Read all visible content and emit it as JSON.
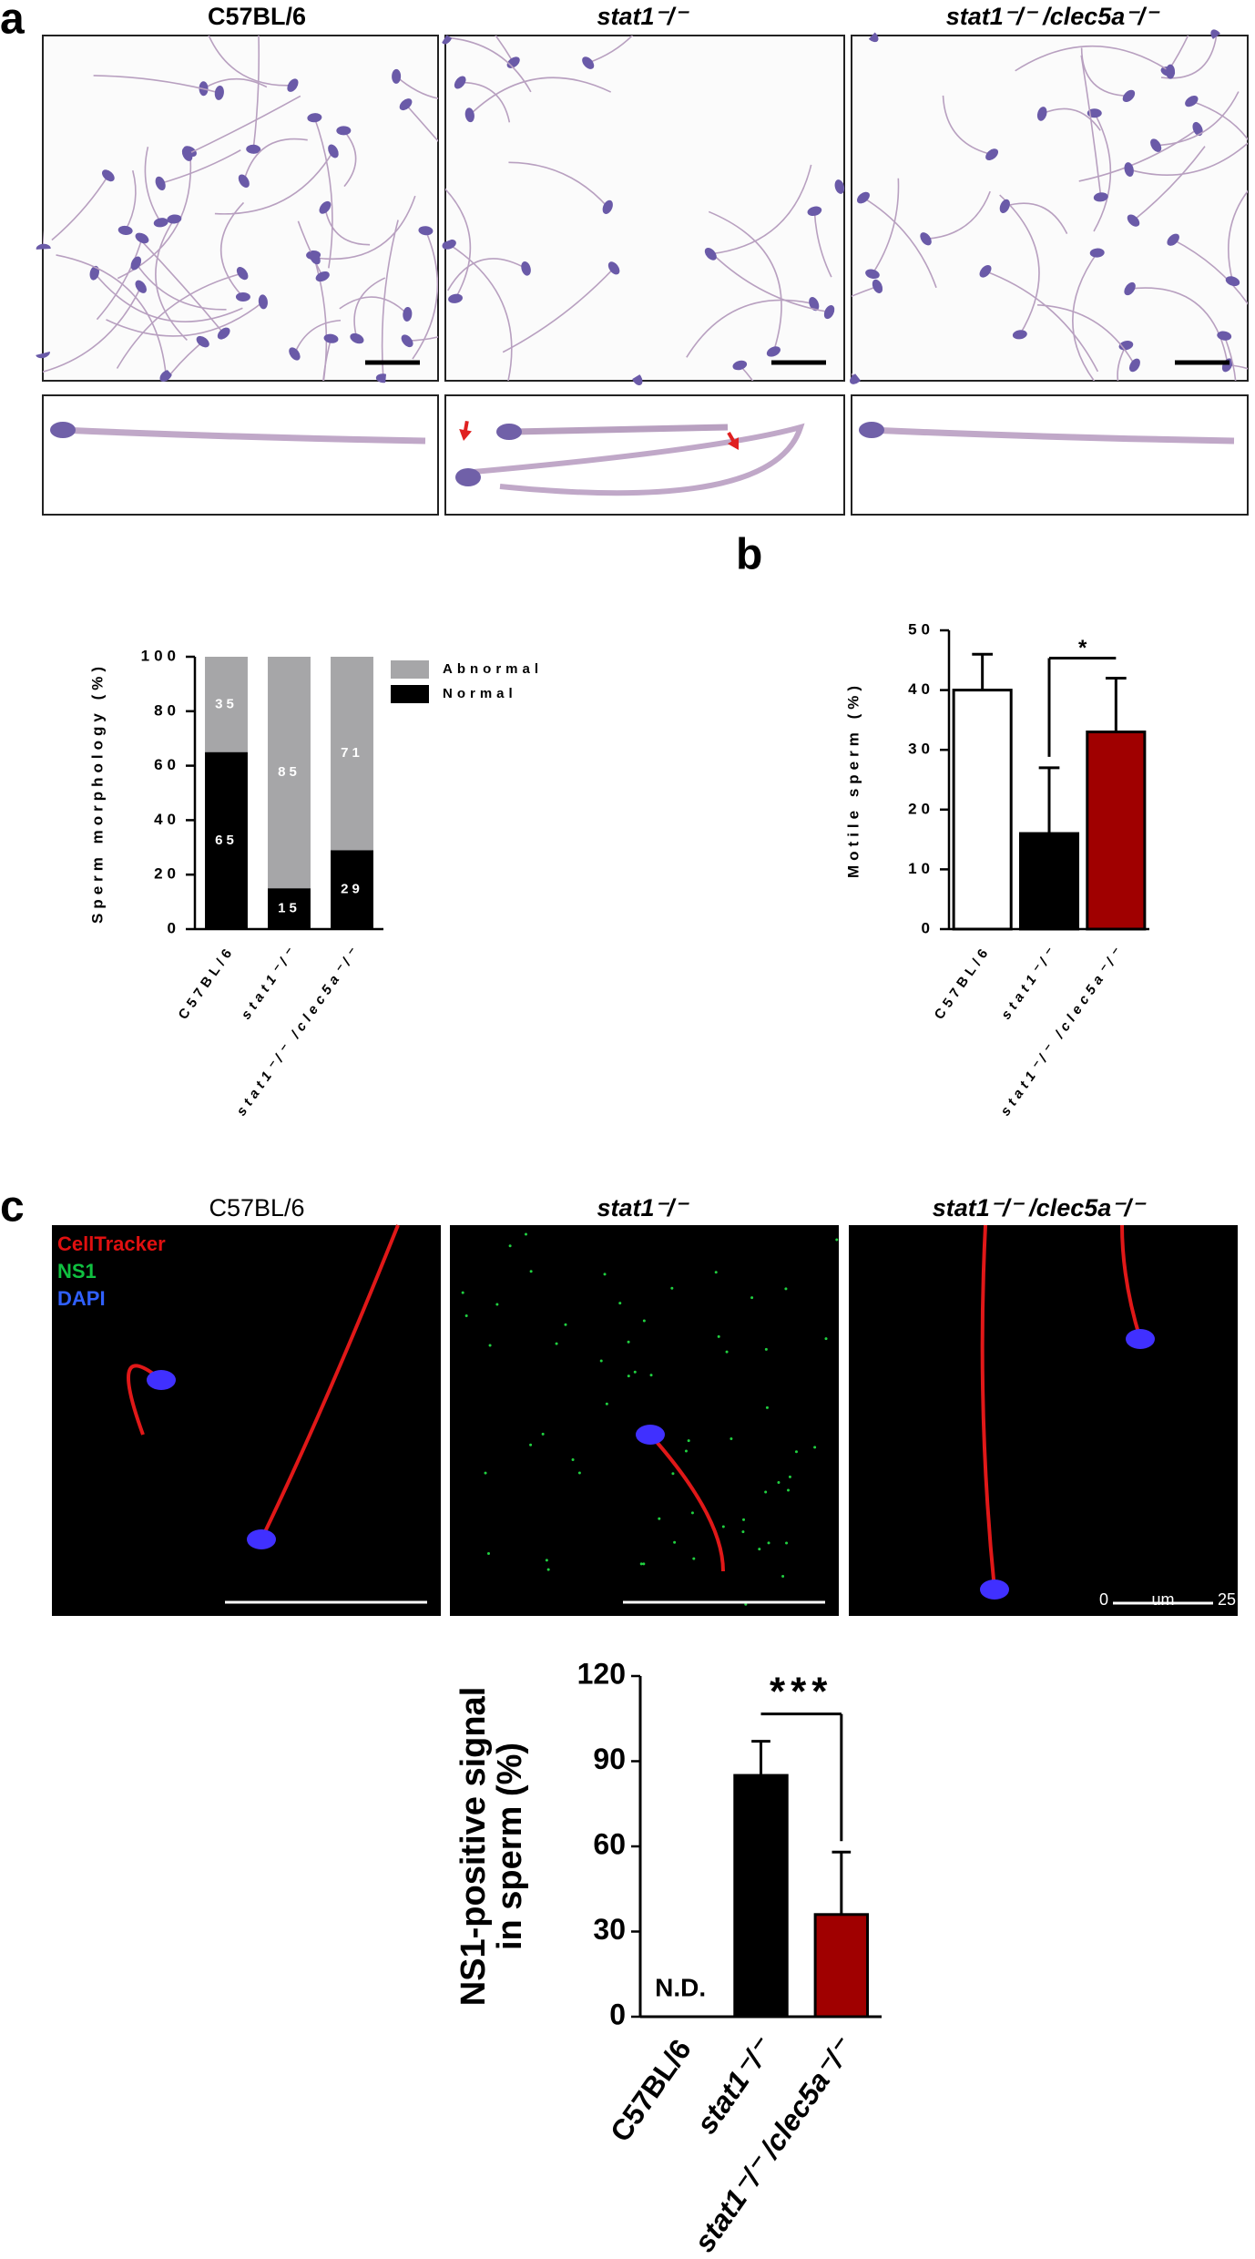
{
  "panel_labels": [
    "a",
    "b",
    "c"
  ],
  "panel_a": {
    "titles": [
      "C57BL/6",
      "stat1⁻/⁻",
      "stat1⁻/⁻ /clec5a⁻/⁻"
    ]
  },
  "panel_c": {
    "titles": [
      "C57BL/6",
      "stat1⁻/⁻",
      "stat1⁻/⁻ /clec5a⁻/⁻"
    ],
    "stain_legend": [
      {
        "label": "CellTracker",
        "color": "#e01010"
      },
      {
        "label": "NS1",
        "color": "#10c040"
      },
      {
        "label": "DAPI",
        "color": "#3060ff"
      }
    ],
    "scale_bar_labels": [
      "0",
      "um",
      "25"
    ]
  },
  "chart_data": [
    {
      "type": "stacked_bar",
      "ylabel": "Sperm morphology (%)",
      "categories": [
        "C57BL/6",
        "stat1⁻/⁻",
        "stat1⁻/⁻ /clec5a⁻/⁻"
      ],
      "series": [
        {
          "name": "Normal",
          "color": "#000000",
          "values": [
            65,
            15,
            29
          ]
        },
        {
          "name": "Abnormal",
          "color": "#a6a6a8",
          "values": [
            35,
            85,
            71
          ]
        }
      ],
      "ylim": [
        0,
        100
      ],
      "yticks": [
        0,
        20,
        40,
        60,
        80,
        100
      ],
      "legend": "right"
    },
    {
      "type": "bar",
      "ylabel": "Motile sperm (%)",
      "categories": [
        "C57BL/6",
        "stat1⁻/⁻",
        "stat1⁻/⁻ /clec5a⁻/⁻"
      ],
      "values": [
        40,
        16,
        33
      ],
      "errors": [
        6,
        11,
        9
      ],
      "colors": [
        "#ffffff",
        "#000000",
        "#a00000"
      ],
      "ylim": [
        0,
        50
      ],
      "yticks": [
        0,
        10,
        20,
        30,
        40,
        50
      ],
      "significance": {
        "from": 1,
        "to": 2,
        "label": "*"
      }
    },
    {
      "type": "bar",
      "ylabel": [
        "NS1-positive signal",
        "in sperm (%)"
      ],
      "categories": [
        "C57BL/6",
        "stat1⁻/⁻",
        "stat1⁻/⁻ /clec5a⁻/⁻"
      ],
      "values": [
        null,
        85,
        36
      ],
      "value_labels": [
        "N.D.",
        null,
        null
      ],
      "errors": [
        null,
        12,
        22
      ],
      "colors": [
        "#ffffff",
        "#000000",
        "#a00000"
      ],
      "ylim": [
        0,
        120
      ],
      "yticks": [
        0,
        30,
        60,
        90,
        120
      ],
      "significance": {
        "from": 1,
        "to": 2,
        "label": "***"
      }
    }
  ]
}
